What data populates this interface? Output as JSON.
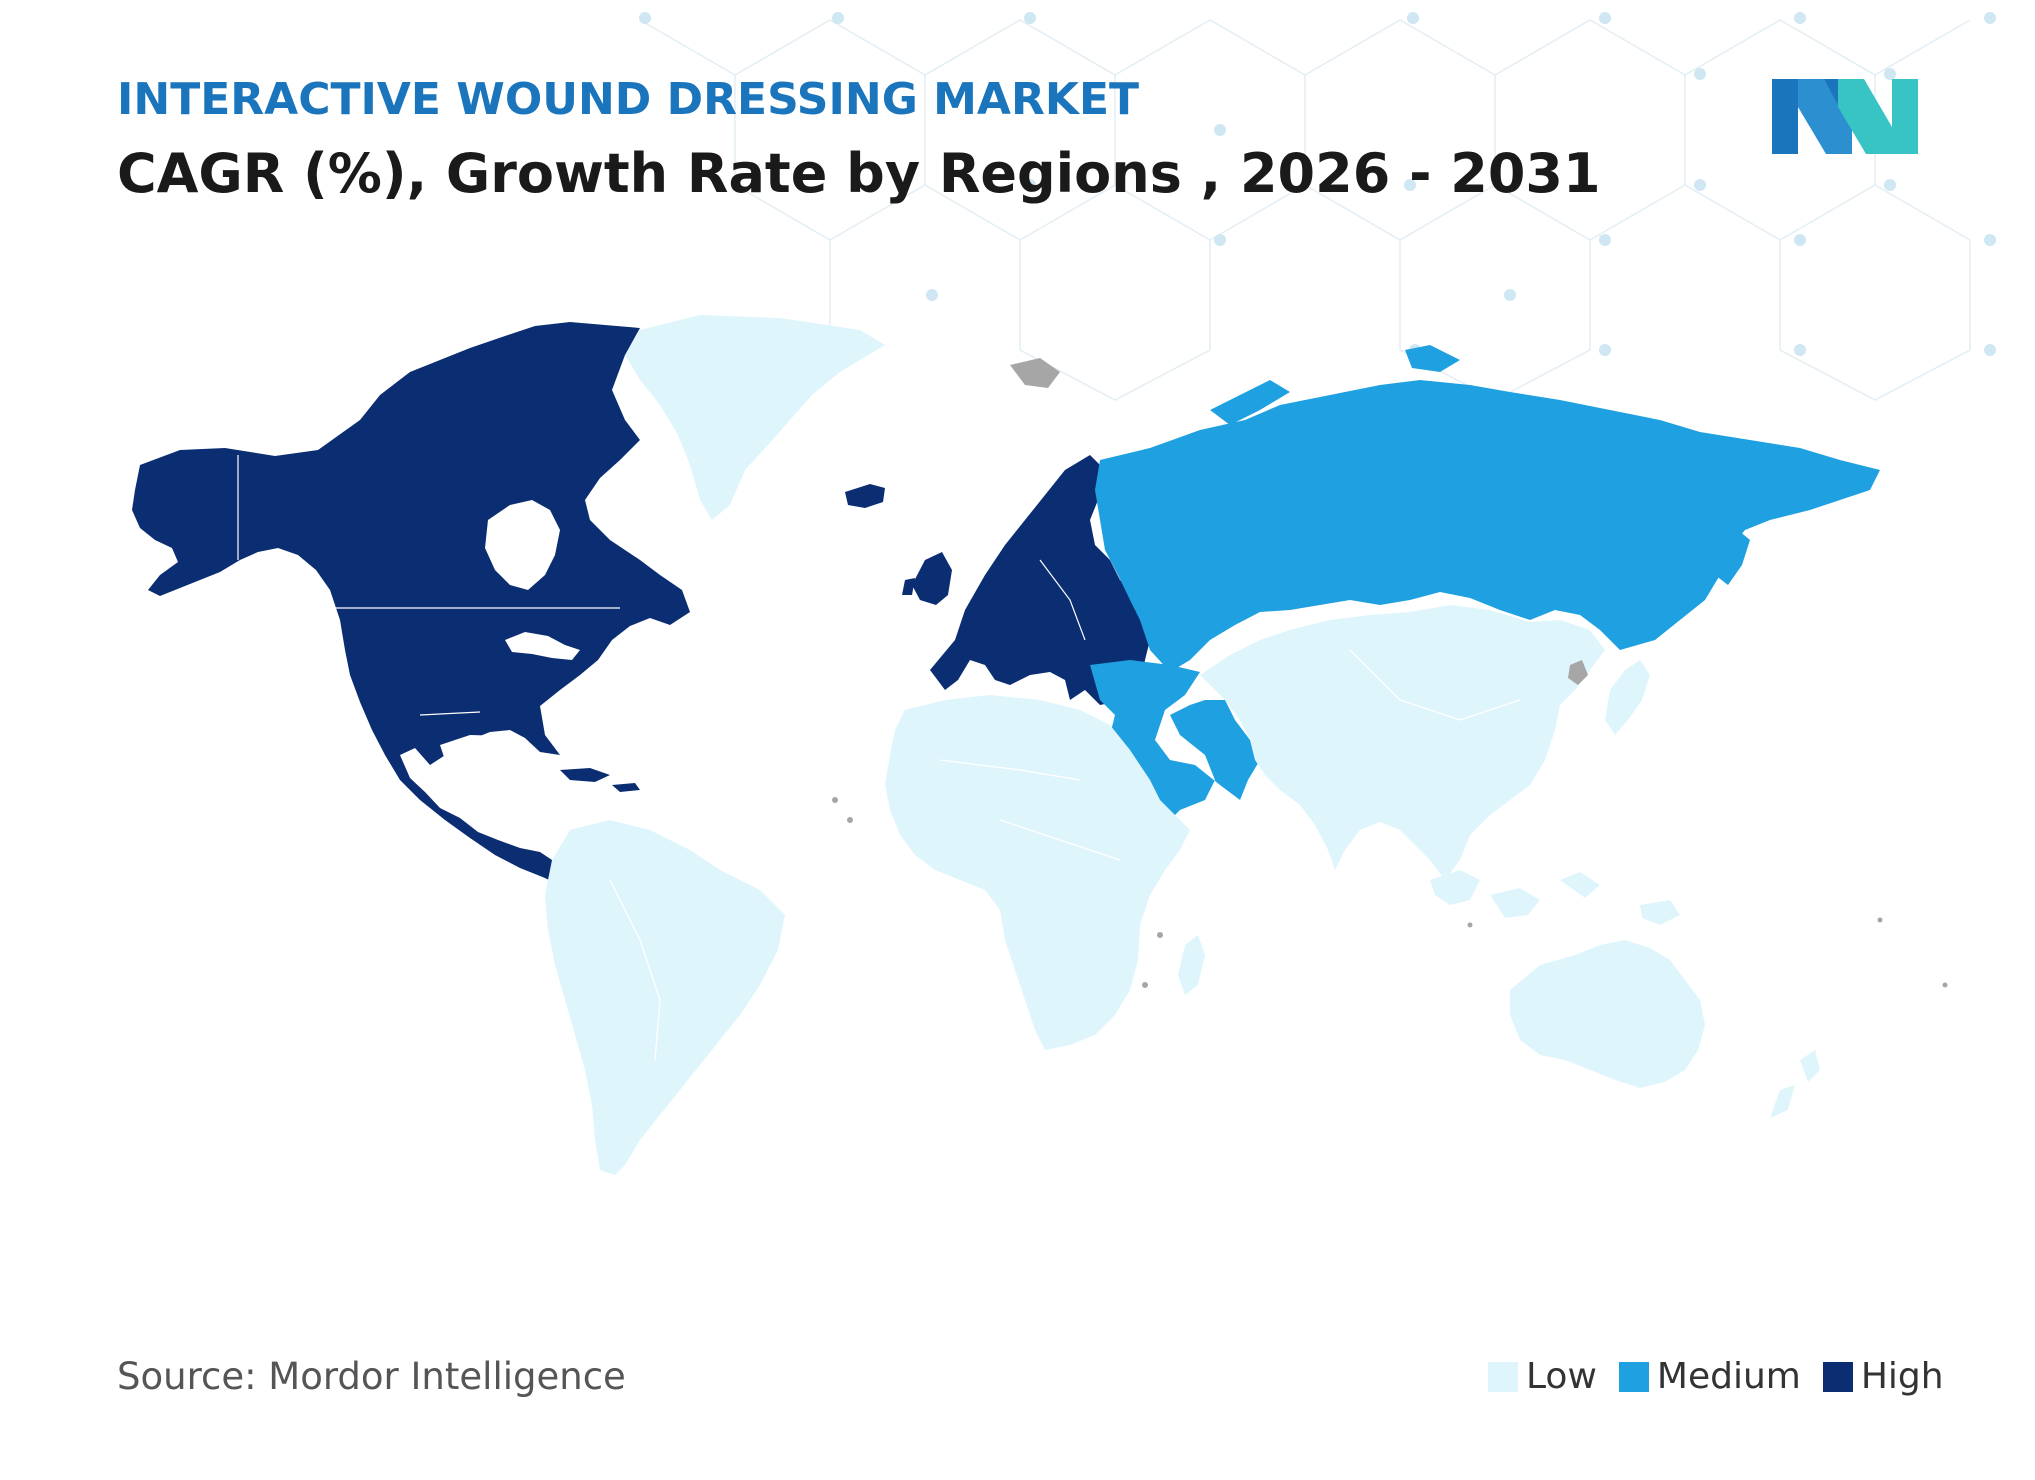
{
  "header": {
    "subtitle": "INTERACTIVE WOUND DRESSING MARKET",
    "title": "CAGR (%), Growth Rate by Regions  , 2026 - 2031"
  },
  "footer": {
    "source": "Source: Mordor Intelligence"
  },
  "legend": [
    {
      "label": "Low",
      "color": "#dff5fc"
    },
    {
      "label": "Medium",
      "color": "#1fa0e0"
    },
    {
      "label": "High",
      "color": "#0b2d72"
    }
  ],
  "colors": {
    "low": "#dff5fc",
    "medium": "#1fa0e0",
    "high": "#0b2d72",
    "no_data": "#a6a6a6",
    "brand_blue": "#1b75bc",
    "brand_teal": "#38c3c4"
  },
  "map_data": {
    "regions": [
      {
        "name": "North America",
        "level": "High"
      },
      {
        "name": "Europe",
        "level": "High"
      },
      {
        "name": "Russia",
        "level": "Medium"
      },
      {
        "name": "Middle East",
        "level": "Medium"
      },
      {
        "name": "Greenland",
        "level": "Low"
      },
      {
        "name": "South America",
        "level": "Low"
      },
      {
        "name": "Africa",
        "level": "Low"
      },
      {
        "name": "Asia",
        "level": "Low"
      },
      {
        "name": "Australia",
        "level": "Low"
      }
    ]
  }
}
